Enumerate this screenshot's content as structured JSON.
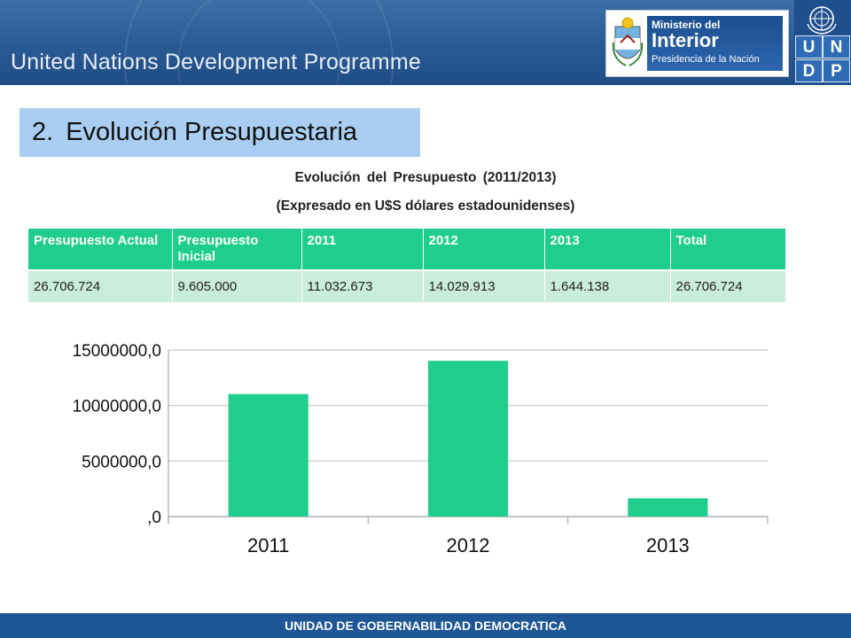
{
  "header": {
    "org_name": "United Nations Development Programme",
    "ministry": {
      "line1": "Ministerio del",
      "line2": "Interior",
      "line3": "Presidencia de la Nación"
    },
    "undp_letters": [
      "U",
      "N",
      "D",
      "P"
    ]
  },
  "section": {
    "number": "2.",
    "title": "Evolución Presupuestaria"
  },
  "subtitle": {
    "line1": "Evolución del Presupuesto (2011/2013)",
    "line2": "(Expresado en U$S dólares estadounidenses)"
  },
  "table": {
    "headers": [
      "Presupuesto Actual",
      "Presupuesto Inicial",
      "2011",
      "2012",
      "2013",
      "Total"
    ],
    "rows": [
      [
        "26.706.724",
        "9.605.000",
        "11.032.673",
        "14.029.913",
        "1.644.138",
        "26.706.724"
      ]
    ]
  },
  "chart_data": {
    "type": "bar",
    "categories": [
      "2011",
      "2012",
      "2013"
    ],
    "values": [
      11032673,
      14029913,
      1644138
    ],
    "ylim": [
      0,
      15000000
    ],
    "yticks": [
      0,
      5000000,
      10000000,
      15000000
    ],
    "ytick_labels": [
      ",0",
      "5000000,0",
      "10000000,0",
      "15000000,0"
    ],
    "bar_color": "#1fce8c",
    "grid": true,
    "legend": "none"
  },
  "footer": {
    "text": "UNIDAD DE GOBERNABILIDAD DEMOCRATICA"
  },
  "colors": {
    "header_blue": "#2a5a94",
    "accent_green": "#1fce8c",
    "cell_green": "#c9ecdb",
    "title_band": "#a9cef1"
  }
}
